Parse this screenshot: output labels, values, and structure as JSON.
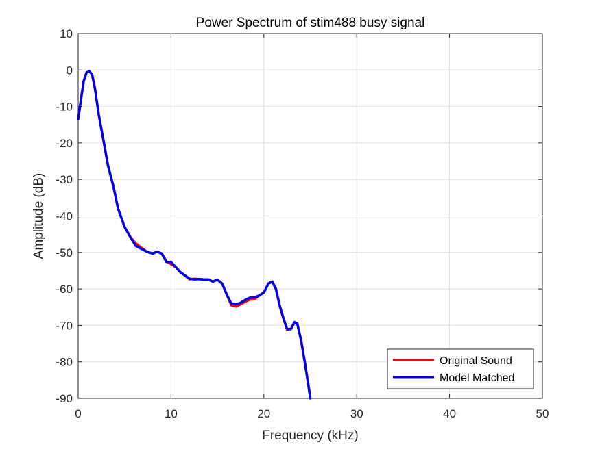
{
  "chart_data": {
    "type": "line",
    "title": "Power Spectrum of stim488 busy signal",
    "xlabel": "Frequency (kHz)",
    "ylabel": "Amplitude (dB)",
    "xlim": [
      0,
      50
    ],
    "ylim": [
      -90,
      10
    ],
    "xticks": [
      0,
      10,
      20,
      30,
      40,
      50
    ],
    "yticks": [
      10,
      0,
      -10,
      -20,
      -30,
      -40,
      -50,
      -60,
      -70,
      -80,
      -90
    ],
    "grid": true,
    "legend_position": "bottom-right",
    "series": [
      {
        "name": "Original Sound",
        "color": "#ff0000",
        "x": [
          0.0,
          0.3,
          0.6,
          0.9,
          1.2,
          1.5,
          1.8,
          2.2,
          2.7,
          3.2,
          3.8,
          4.3,
          5.0,
          5.6,
          6.2,
          6.8,
          7.4,
          8.0,
          8.5,
          9.0,
          9.5,
          10.0,
          10.5,
          11.0,
          11.5,
          12.0,
          12.5,
          13.0,
          13.5,
          14.0,
          14.5,
          15.0,
          15.5,
          16.0,
          16.5,
          17.0,
          17.5,
          18.0,
          18.5,
          19.0,
          19.5,
          20.0,
          20.5,
          20.9,
          21.3,
          21.7,
          22.1,
          22.5,
          22.9,
          23.3,
          23.6,
          24.0,
          24.4,
          24.8,
          25.0
        ],
        "y": [
          -13.5,
          -8,
          -3,
          -0.7,
          -0.3,
          -1.2,
          -5,
          -12,
          -19,
          -26,
          -32,
          -38,
          -43,
          -45.7,
          -47.5,
          -48.7,
          -49.8,
          -50.3,
          -49.8,
          -50.3,
          -52.4,
          -53.2,
          -54,
          -55.4,
          -56.3,
          -57.4,
          -57.2,
          -57.3,
          -57.4,
          -57.4,
          -58,
          -57.5,
          -58.5,
          -61.5,
          -64.5,
          -64.8,
          -64.2,
          -63.5,
          -62.9,
          -62.8,
          -61.8,
          -61,
          -58.5,
          -58,
          -60,
          -64.5,
          -68,
          -71.2,
          -71,
          -69.3,
          -69.5,
          -74,
          -80,
          -86.5,
          -89.5
        ]
      },
      {
        "name": "Model Matched",
        "color": "#0000e6",
        "x": [
          0.0,
          0.3,
          0.6,
          0.9,
          1.2,
          1.5,
          1.8,
          2.2,
          2.7,
          3.2,
          3.8,
          4.3,
          5.0,
          5.6,
          6.2,
          6.8,
          7.4,
          8.0,
          8.5,
          9.0,
          9.5,
          10.0,
          10.5,
          11.0,
          11.5,
          12.0,
          12.5,
          13.0,
          13.5,
          14.0,
          14.5,
          15.0,
          15.5,
          16.0,
          16.5,
          17.0,
          17.5,
          18.0,
          18.5,
          19.0,
          19.5,
          20.0,
          20.5,
          20.9,
          21.3,
          21.7,
          22.1,
          22.5,
          22.9,
          23.3,
          23.6,
          24.0,
          24.4,
          24.8,
          25.0
        ],
        "y": [
          -13.5,
          -8,
          -3,
          -0.7,
          -0.3,
          -1.2,
          -5,
          -12,
          -19,
          -26,
          -32,
          -38,
          -43,
          -45.7,
          -48.2,
          -49,
          -49.8,
          -50.3,
          -49.8,
          -50.3,
          -52.6,
          -52.6,
          -54,
          -55.4,
          -56.3,
          -57.2,
          -57.4,
          -57.3,
          -57.4,
          -57.4,
          -58,
          -57.5,
          -58.5,
          -61.5,
          -64.0,
          -64.2,
          -63.8,
          -63,
          -62.4,
          -62.3,
          -61.8,
          -61,
          -58.5,
          -58,
          -60,
          -64.5,
          -68,
          -71.0,
          -71,
          -69.1,
          -69.5,
          -74,
          -80,
          -86.5,
          -90
        ]
      }
    ]
  }
}
